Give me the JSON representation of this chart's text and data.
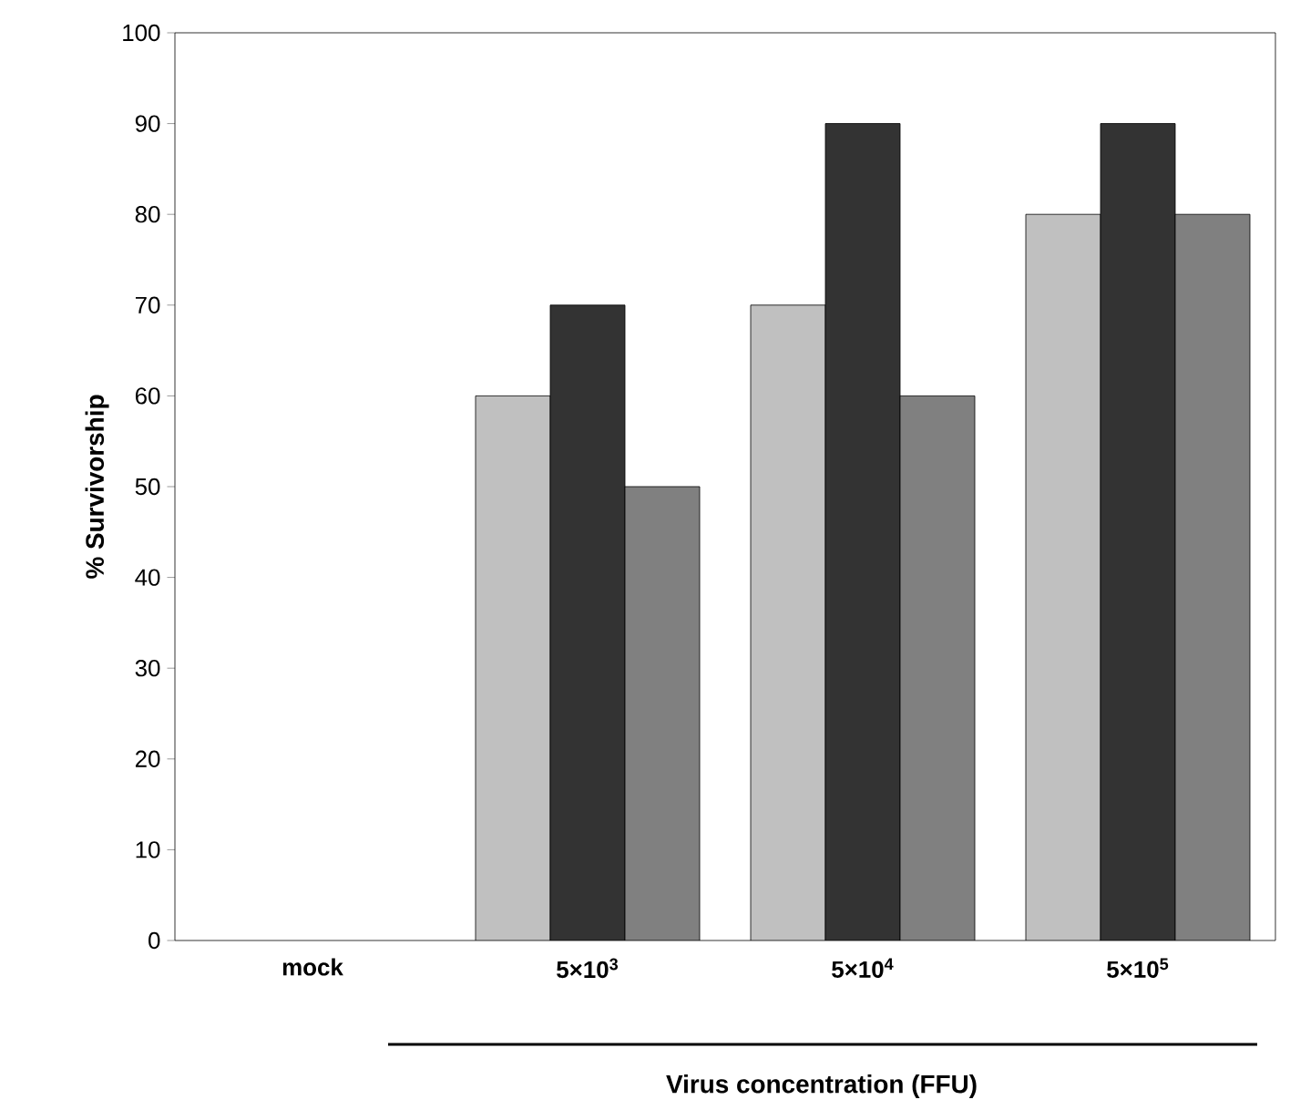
{
  "chart_data": {
    "type": "bar",
    "xlabel": "Virus concentration (FFU)",
    "ylabel": "% Survivorship",
    "categories": [
      "mock",
      "5×10$^{3}$",
      "5×10$^{4}$",
      "5×10$^{5}$"
    ],
    "series": [
      {
        "color": "#c0c0c0",
        "values": [
          null,
          60,
          70,
          80
        ]
      },
      {
        "color": "#333333",
        "values": [
          null,
          70,
          90,
          90
        ]
      },
      {
        "color": "#808080",
        "values": [
          null,
          50,
          60,
          80
        ]
      }
    ],
    "ylim": [
      0,
      100
    ],
    "yticks": [
      0,
      10,
      20,
      30,
      40,
      50,
      60,
      70,
      80,
      90,
      100
    ],
    "grid": false
  }
}
